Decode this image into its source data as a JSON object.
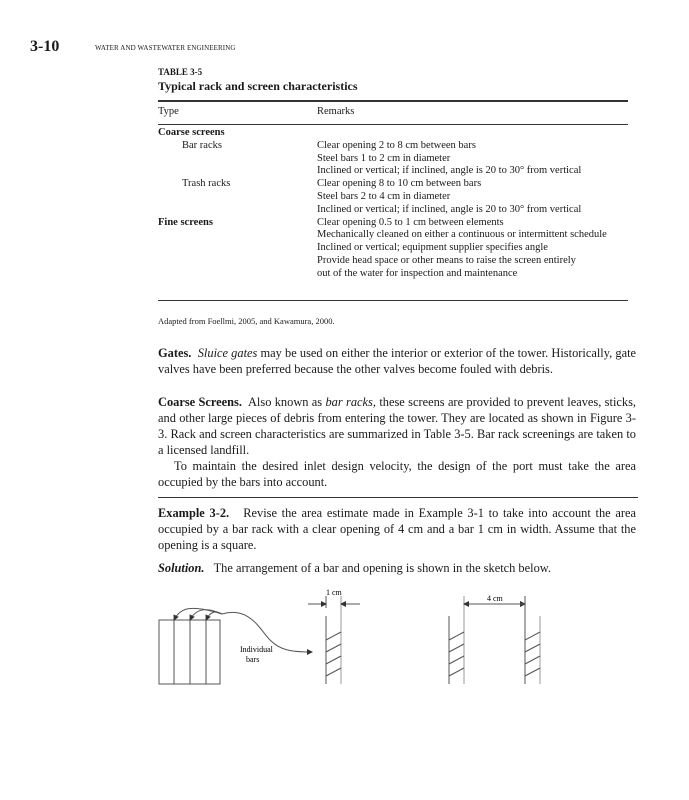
{
  "header": {
    "page_number": "3-10",
    "running_head": "WATER AND WASTEWATER ENGINEERING"
  },
  "table": {
    "label": "TABLE 3-5",
    "title": "Typical rack and screen characteristics",
    "columns": [
      "Type",
      "Remarks"
    ],
    "rows": [
      {
        "type": "Coarse screens",
        "style": "bold",
        "remark": ""
      },
      {
        "type": "Bar racks",
        "style": "sub",
        "remark": "Clear opening 2 to 8 cm between bars"
      },
      {
        "type": "",
        "style": "",
        "remark": "Steel bars 1 to 2 cm in diameter"
      },
      {
        "type": "",
        "style": "",
        "remark": "Inclined or vertical; if inclined, angle is 20 to 30° from vertical"
      },
      {
        "type": "Trash racks",
        "style": "sub",
        "remark": "Clear opening 8 to 10 cm between bars"
      },
      {
        "type": "",
        "style": "",
        "remark": "Steel bars 2 to 4 cm in diameter"
      },
      {
        "type": "",
        "style": "",
        "remark": "Inclined or vertical; if inclined, angle is 20 to 30° from vertical"
      },
      {
        "type": "Fine screens",
        "style": "bold",
        "remark": "Clear opening 0.5 to 1 cm between elements"
      },
      {
        "type": "",
        "style": "",
        "remark": "Mechanically cleaned on either a continuous or intermittent schedule"
      },
      {
        "type": "",
        "style": "",
        "remark": "Inclined or vertical; equipment supplier specifies angle"
      },
      {
        "type": "",
        "style": "",
        "remark": "Provide head space or other means to raise the screen entirely"
      },
      {
        "type": "",
        "style": "",
        "remark": "out of the water for inspection and maintenance"
      }
    ],
    "source": "Adapted from Foellmi, 2005, and Kawamura, 2000."
  },
  "body": {
    "gates_head": "Gates.",
    "gates_italic": "Sluice gates",
    "gates_text": " may be used on either the interior or exterior of the tower. Historically, gate valves have been preferred because the other valves become fouled with debris.",
    "coarse_head": "Coarse Screens.",
    "coarse_text1": " Also known as ",
    "coarse_italic": "bar racks,",
    "coarse_text2": " these screens are provided to prevent leaves, sticks, and other large pieces of debris from entering the tower. They are located as shown in Figure 3-3. Rack and screen characteristics are summarized in Table 3-5. Bar rack screenings are taken to a licensed landfill.",
    "maintain_text": "To maintain the desired inlet design velocity, the design of the port must take the area occupied by the bars into account.",
    "example_head": "Example 3-2.",
    "example_text": " Revise the area estimate made in Example 3-1 to take into account the area occupied by a bar rack with a clear opening of 4 cm and a bar 1 cm in width. Assume that the opening is a square.",
    "solution_head": "Solution.",
    "solution_text": " The arrangement of a bar and opening is shown in the sketch below."
  },
  "figure": {
    "bar_width_label": "1 cm",
    "opening_label": "4 cm",
    "bars_label_1": "Individual",
    "bars_label_2": "bars"
  }
}
